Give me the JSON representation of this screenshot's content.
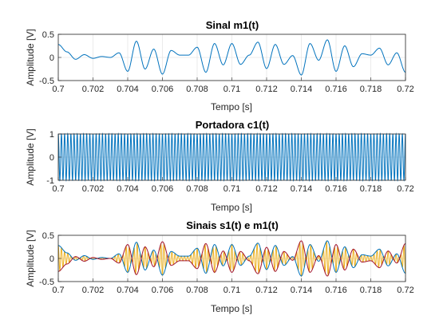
{
  "chart_data": [
    {
      "type": "line",
      "title": "Sinal m1(t)",
      "xlabel": "Tempo [s]",
      "ylabel": "Amplitude [V]",
      "xlim": [
        0.7,
        0.72
      ],
      "ylim": [
        -0.5,
        0.5
      ],
      "x_ticks": [
        "0.7",
        "0.702",
        "0.704",
        "0.706",
        "0.708",
        "0.71",
        "0.712",
        "0.714",
        "0.716",
        "0.718",
        "0.72"
      ],
      "y_ticks": [
        "0.5",
        "0",
        "-0.5"
      ],
      "grid": true,
      "color": "#0072BD",
      "series": [
        {
          "x": [
            0.7,
            0.7005,
            0.701,
            0.7015,
            0.702,
            0.7025,
            0.703,
            0.7035,
            0.704,
            0.7045,
            0.705,
            0.7055,
            0.706,
            0.7065,
            0.707,
            0.7075,
            0.708,
            0.7085,
            0.709,
            0.7095,
            0.71,
            0.7105,
            0.711,
            0.7115,
            0.712,
            0.7125,
            0.713,
            0.7135,
            0.714,
            0.7145,
            0.715,
            0.7155,
            0.716,
            0.7165,
            0.717,
            0.7175,
            0.718,
            0.7185,
            0.719,
            0.7195,
            0.72
          ],
          "values": [
            0.28,
            0.12,
            -0.04,
            0.06,
            -0.02,
            0.02,
            0.0,
            0.1,
            -0.3,
            0.35,
            -0.25,
            0.18,
            -0.36,
            0.15,
            0.05,
            0.05,
            0.22,
            -0.32,
            0.3,
            -0.16,
            0.3,
            -0.15,
            0.05,
            0.33,
            -0.24,
            0.28,
            -0.15,
            0.04,
            -0.38,
            0.3,
            -0.06,
            0.38,
            -0.3,
            0.25,
            -0.2,
            0.08,
            0.05,
            0.2,
            -0.16,
            0.1,
            -0.32
          ]
        }
      ]
    },
    {
      "type": "line",
      "title": "Portadora c1(t)",
      "xlabel": "Tempo [s]",
      "ylabel": "Amplitude [V]",
      "xlim": [
        0.7,
        0.72
      ],
      "ylim": [
        -1,
        1
      ],
      "x_ticks": [
        "0.7",
        "0.702",
        "0.704",
        "0.706",
        "0.708",
        "0.71",
        "0.712",
        "0.714",
        "0.716",
        "0.718",
        "0.72"
      ],
      "y_ticks": [
        "1",
        "0",
        "-1"
      ],
      "grid": true,
      "color": "#0072BD",
      "series": [
        {
          "amplitude": 1.0,
          "cycles_in_window": 110
        }
      ]
    },
    {
      "type": "line",
      "title": "Sinais s1(t) e m1(t)",
      "xlabel": "Tempo [s]",
      "ylabel": "Amplitude [V]",
      "xlim": [
        0.7,
        0.72
      ],
      "ylim": [
        -0.5,
        0.5
      ],
      "x_ticks": [
        "0.7",
        "0.702",
        "0.704",
        "0.706",
        "0.708",
        "0.71",
        "0.712",
        "0.714",
        "0.716",
        "0.718",
        "0.72"
      ],
      "y_ticks": [
        "0.5",
        "0",
        "-0.5"
      ],
      "grid": true,
      "colors": {
        "s1": "#EDB120",
        "m1": "#0072BD",
        "neg_m1": "#A2142F"
      },
      "series": [
        {
          "name": "s1",
          "carrier_cycles_in_window": 110
        },
        {
          "name": "m1"
        },
        {
          "name": "-m1"
        }
      ]
    }
  ]
}
